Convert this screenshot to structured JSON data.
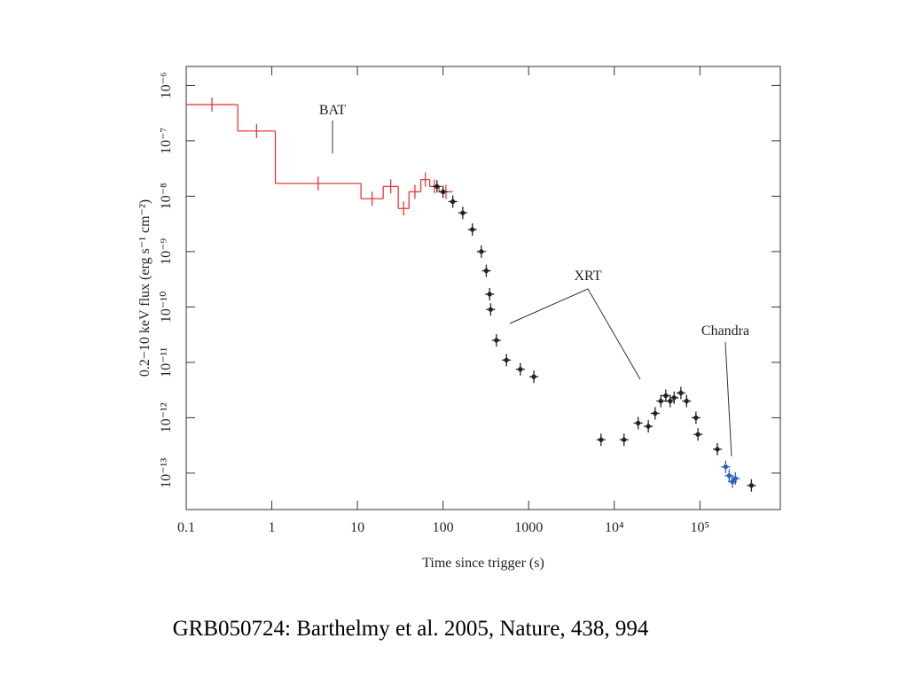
{
  "chart_data": {
    "type": "scatter",
    "x_label": "Time since trigger (s)",
    "y_label": "0.2−10 keV flux (erg s⁻¹ cm⁻²)",
    "caption": "GRB050724: Barthelmy et al. 2005, Nature, 438, 994",
    "log_x": true,
    "log_y": true,
    "xlim": [
      0.1,
      870000
    ],
    "ylim": [
      2.2e-14,
      2.2e-06
    ],
    "xticks": [
      {
        "value": 0.1,
        "label": "0.1"
      },
      1,
      10,
      100,
      1000,
      {
        "value": 10000,
        "label": "10⁴"
      },
      {
        "value": 100000,
        "label": "10⁵"
      }
    ],
    "yticks": [
      {
        "value": 1e-13,
        "label": "10⁻¹³"
      },
      {
        "value": 1e-12,
        "label": "10⁻¹²"
      },
      {
        "value": 1e-11,
        "label": "10⁻¹¹"
      },
      {
        "value": 1e-10,
        "label": "10⁻¹⁰"
      },
      {
        "value": 1e-09,
        "label": "10⁻⁹"
      },
      {
        "value": 1e-08,
        "label": "10⁻⁸"
      },
      {
        "value": 1e-07,
        "label": "10⁻⁷"
      },
      {
        "value": 1e-06,
        "label": "10⁻⁶"
      }
    ],
    "annotations": [
      "BAT",
      "XRT",
      "Chandra"
    ],
    "bat": {
      "color": "#e8393a",
      "bins": [
        0.1,
        0.4,
        1.1,
        11,
        20,
        30,
        40,
        55,
        70,
        90,
        130
      ],
      "values": [
        4.5e-07,
        1.5e-07,
        1.7e-08,
        9e-09,
        1.5e-08,
        6e-09,
        1.2e-08,
        2e-08,
        1.5e-08,
        1.2e-08
      ]
    },
    "series": [
      {
        "color": "#222222",
        "x": [
          85,
          100,
          130,
          170,
          220,
          280,
          320,
          350,
          360,
          420,
          550,
          800,
          1150,
          7000,
          13000,
          19000,
          25000,
          30000,
          35000,
          40000,
          45000,
          50000,
          60000,
          70000,
          90000,
          95000,
          160000,
          400000
        ],
        "values": [
          1.5e-08,
          1.2e-08,
          8e-09,
          5e-09,
          2.5e-09,
          1e-09,
          4.5e-10,
          1.7e-10,
          9e-11,
          2.5e-11,
          1.1e-11,
          7.5e-12,
          5.5e-12,
          4e-13,
          4e-13,
          8e-13,
          7e-13,
          1.2e-12,
          2e-12,
          2.5e-12,
          2e-12,
          2.3e-12,
          2.8e-12,
          2e-12,
          1e-12,
          5e-13,
          2.7e-13,
          6e-14
        ]
      },
      {
        "color": "#2f62c0",
        "x": [
          200000,
          220000,
          240000,
          260000
        ],
        "values": [
          1.3e-13,
          9e-14,
          7e-14,
          8e-14
        ]
      }
    ]
  }
}
